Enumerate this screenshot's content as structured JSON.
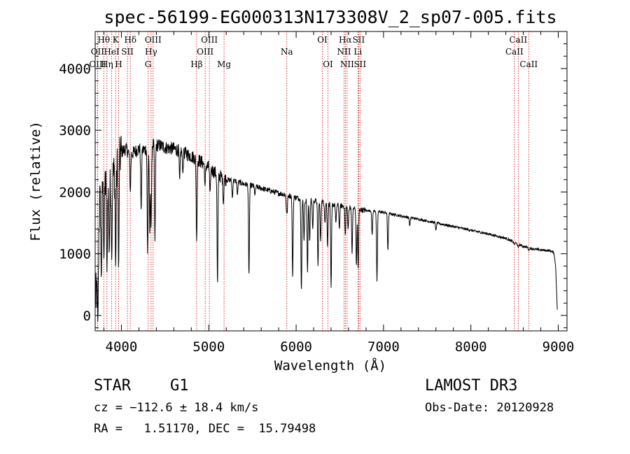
{
  "chart_data": {
    "type": "line",
    "title": "spec-56199-EG000313N173308V_2_sp07-005.fits",
    "xlabel": "Wavelength (Å)",
    "ylabel": "Flux (relative)",
    "xlim": [
      3700,
      9100
    ],
    "ylim": [
      -250,
      4600
    ],
    "xticks": [
      4000,
      5000,
      6000,
      7000,
      8000,
      9000
    ],
    "xtick_labels": [
      "4000",
      "5000",
      "6000",
      "7000",
      "8000",
      "9000"
    ],
    "yticks": [
      0,
      1000,
      2000,
      3000,
      4000
    ],
    "ytick_labels": [
      "0",
      "1000",
      "2000",
      "3000",
      "4000"
    ],
    "continuum": {
      "x": [
        3700,
        3720,
        3750,
        3800,
        3850,
        3900,
        3950,
        4000,
        4050,
        4100,
        4150,
        4200,
        4250,
        4300,
        4350,
        4400,
        4450,
        4500,
        4600,
        4700,
        4800,
        4900,
        5000,
        5100,
        5200,
        5300,
        5400,
        5500,
        5600,
        5700,
        5800,
        5900,
        6000,
        6100,
        6200,
        6300,
        6400,
        6500,
        6600,
        6700,
        6800,
        6900,
        7000,
        7200,
        7400,
        7600,
        7800,
        8000,
        8200,
        8400,
        8500,
        8600,
        8700,
        8800,
        8900,
        8950,
        8970,
        8990
      ],
      "y": [
        250,
        400,
        1800,
        2200,
        2100,
        2250,
        2400,
        2650,
        2700,
        2600,
        2650,
        2700,
        2680,
        2700,
        2780,
        2760,
        2750,
        2720,
        2700,
        2650,
        2580,
        2500,
        2400,
        2280,
        2200,
        2180,
        2130,
        2100,
        2060,
        2020,
        1980,
        1950,
        1910,
        1870,
        1860,
        1840,
        1800,
        1780,
        1760,
        1720,
        1700,
        1690,
        1670,
        1610,
        1560,
        1500,
        1440,
        1380,
        1320,
        1250,
        1180,
        1120,
        1080,
        1060,
        1050,
        1020,
        800,
        50
      ]
    },
    "absorption_lines": [
      {
        "x": 3730,
        "min": -100
      },
      {
        "x": 3770,
        "min": 600
      },
      {
        "x": 3800,
        "min": 900
      },
      {
        "x": 3835,
        "min": 700
      },
      {
        "x": 3860,
        "min": 1000
      },
      {
        "x": 3889,
        "min": 900
      },
      {
        "x": 3934,
        "min": 800
      },
      {
        "x": 3968,
        "min": 750
      },
      {
        "x": 4102,
        "min": 2000
      },
      {
        "x": 4226,
        "min": 1700
      },
      {
        "x": 4300,
        "min": 1000
      },
      {
        "x": 4325,
        "min": 1300
      },
      {
        "x": 4340,
        "min": 1400
      },
      {
        "x": 4384,
        "min": 1200
      },
      {
        "x": 4667,
        "min": 2200
      },
      {
        "x": 4703,
        "min": 2300
      },
      {
        "x": 4861,
        "min": 1200
      },
      {
        "x": 4957,
        "min": 2100
      },
      {
        "x": 5015,
        "min": 2000
      },
      {
        "x": 5100,
        "min": 500
      },
      {
        "x": 5167,
        "min": 1800
      },
      {
        "x": 5270,
        "min": 1900
      },
      {
        "x": 5328,
        "min": 1950
      },
      {
        "x": 5460,
        "min": 650
      },
      {
        "x": 5528,
        "min": 1950
      },
      {
        "x": 5890,
        "min": 1700
      },
      {
        "x": 5896,
        "min": 1650
      },
      {
        "x": 5960,
        "min": 600
      },
      {
        "x": 6060,
        "min": 400
      },
      {
        "x": 6090,
        "min": 1200
      },
      {
        "x": 6130,
        "min": 700
      },
      {
        "x": 6155,
        "min": 1200
      },
      {
        "x": 6190,
        "min": 1400
      },
      {
        "x": 6250,
        "min": 800
      },
      {
        "x": 6280,
        "min": 1200
      },
      {
        "x": 6330,
        "min": 1500
      },
      {
        "x": 6360,
        "min": 1100
      },
      {
        "x": 6400,
        "min": 450
      },
      {
        "x": 6455,
        "min": 1500
      },
      {
        "x": 6495,
        "min": 1400
      },
      {
        "x": 6563,
        "min": 1300
      },
      {
        "x": 6595,
        "min": 1400
      },
      {
        "x": 6640,
        "min": 1000
      },
      {
        "x": 6690,
        "min": 800
      },
      {
        "x": 6710,
        "min": 750
      },
      {
        "x": 6870,
        "min": 1300
      },
      {
        "x": 6925,
        "min": 550
      },
      {
        "x": 7050,
        "min": 1050
      },
      {
        "x": 7300,
        "min": 1450
      },
      {
        "x": 7600,
        "min": 1380
      },
      {
        "x": 8498,
        "min": 1150
      },
      {
        "x": 8542,
        "min": 1100
      },
      {
        "x": 8662,
        "min": 1050
      }
    ],
    "line_markers": [
      {
        "label": "Hθ",
        "x": 3798,
        "row": 0
      },
      {
        "label": "OII",
        "x": 3727,
        "row": 1
      },
      {
        "label": "OIII",
        "x": 3727,
        "row": 2
      },
      {
        "label": "K",
        "x": 3934,
        "row": 0
      },
      {
        "label": "HeI",
        "x": 3889,
        "row": 1
      },
      {
        "label": "Hη",
        "x": 3835,
        "row": 2
      },
      {
        "label": "Hδ",
        "x": 4102,
        "row": 0
      },
      {
        "label": "SII",
        "x": 4069,
        "row": 1
      },
      {
        "label": "H",
        "x": 3968,
        "row": 2
      },
      {
        "label": "OIII",
        "x": 4363,
        "row": 0
      },
      {
        "label": "Hγ",
        "x": 4340,
        "row": 1
      },
      {
        "label": "G",
        "x": 4305,
        "row": 2
      },
      {
        "label": "OIII",
        "x": 5007,
        "row": 0
      },
      {
        "label": "OIII",
        "x": 4959,
        "row": 1
      },
      {
        "label": "Hβ",
        "x": 4861,
        "row": 2
      },
      {
        "label": "Mg",
        "x": 5175,
        "row": 2
      },
      {
        "label": "Na",
        "x": 5893,
        "row": 1
      },
      {
        "label": "OI",
        "x": 6300,
        "row": 0
      },
      {
        "label": "OI",
        "x": 6364,
        "row": 2
      },
      {
        "label": "Hα",
        "x": 6563,
        "row": 0
      },
      {
        "label": "SII",
        "x": 6716,
        "row": 0
      },
      {
        "label": "NII",
        "x": 6548,
        "row": 1
      },
      {
        "label": "Li",
        "x": 6707,
        "row": 1
      },
      {
        "label": "NII",
        "x": 6583,
        "row": 2
      },
      {
        "label": "SII",
        "x": 6731,
        "row": 2
      },
      {
        "label": "CaII",
        "x": 8542,
        "row": 0
      },
      {
        "label": "CaII",
        "x": 8498,
        "row": 1
      },
      {
        "label": "CaII",
        "x": 8662,
        "row": 2
      }
    ]
  },
  "footer": {
    "object_class": "STAR",
    "subclass": "G1",
    "survey": "LAMOST DR3",
    "cz_label": "cz = ",
    "cz_value": "−112.6 ± 18.4 km/s",
    "obs_date": "Obs-Date: 20120928",
    "coords": "RA =   1.51170, DEC =  15.79498"
  },
  "colors": {
    "spectrum": "#000000",
    "marker_line": "#cc0000",
    "axes": "#000000"
  }
}
